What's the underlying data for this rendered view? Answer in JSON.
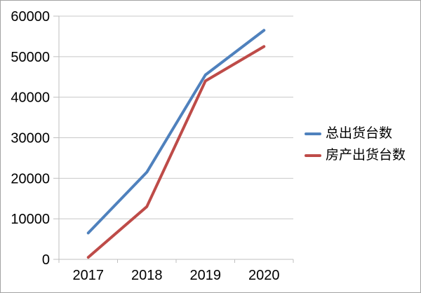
{
  "chart_data": {
    "type": "line",
    "title": "",
    "xlabel": "",
    "ylabel": "",
    "categories": [
      "2017",
      "2018",
      "2019",
      "2020"
    ],
    "series": [
      {
        "name": "总出货台数",
        "color": "#4F81BD",
        "values": [
          6500,
          21500,
          45500,
          56500
        ]
      },
      {
        "name": "房产出货台数",
        "color": "#BE4B48",
        "values": [
          500,
          13000,
          44000,
          52500
        ]
      }
    ],
    "ylim": [
      0,
      60000
    ],
    "ytick_step": 10000,
    "ytick_labels": [
      "0",
      "10000",
      "20000",
      "30000",
      "40000",
      "50000",
      "60000"
    ],
    "grid": true,
    "legend_position": "right"
  },
  "style": {
    "background": "#FFFFFF",
    "frame_border_color": "#A3A3A3",
    "gridline_color": "#C8C8C8",
    "axis_color": "#BFBFBF",
    "tick_label_color": "#000000",
    "line_width": 4
  }
}
